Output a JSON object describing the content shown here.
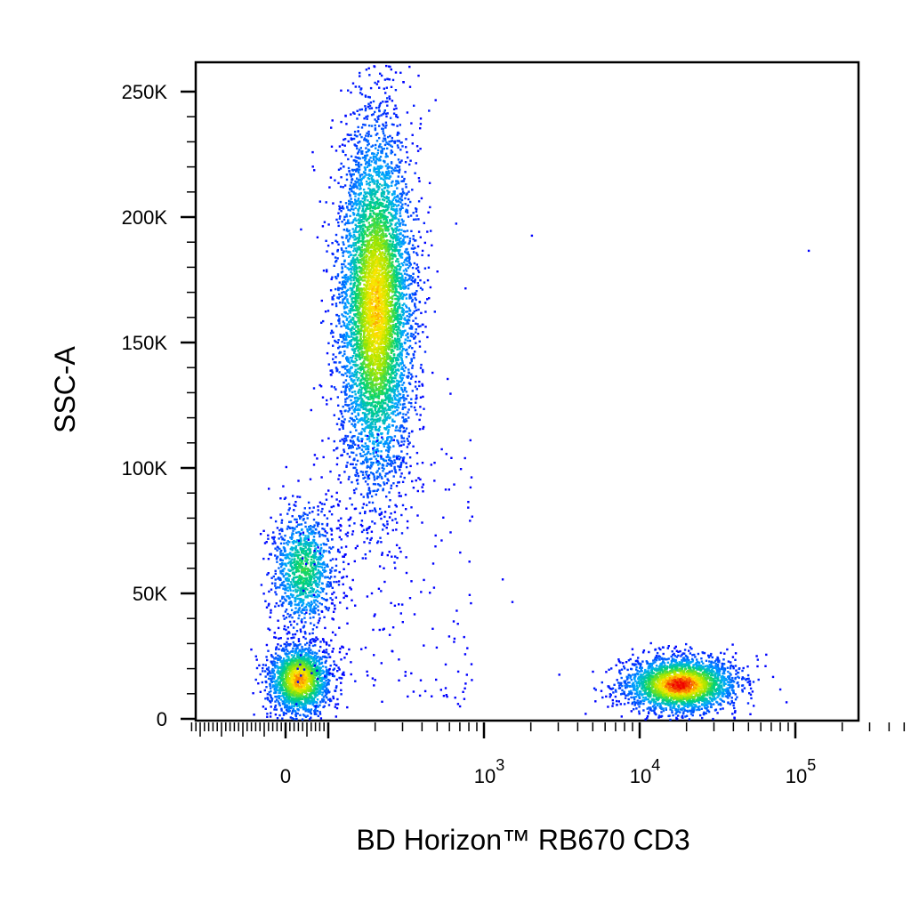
{
  "chart_data": {
    "type": "scatter",
    "title": "",
    "xlabel": "BD Horizon™ RB670 CD3",
    "ylabel": "SSC-A",
    "x_scale": "biexponential",
    "y_scale": "linear",
    "xlim": [
      -250,
      200000
    ],
    "ylim": [
      -3000,
      262144
    ],
    "grid": false,
    "legend": "none",
    "color_scale": "density (blue → cyan → green → yellow → red)",
    "x_ticks": [
      {
        "value": 0,
        "label": "0",
        "exp": ""
      },
      {
        "value": 1000,
        "label": "10",
        "exp": "3"
      },
      {
        "value": 10000,
        "label": "10",
        "exp": "4"
      },
      {
        "value": 100000,
        "label": "10",
        "exp": "5"
      }
    ],
    "y_ticks": [
      {
        "value": 0,
        "label": "0"
      },
      {
        "value": 50000,
        "label": "50K"
      },
      {
        "value": 100000,
        "label": "100K"
      },
      {
        "value": 150000,
        "label": "150K"
      },
      {
        "value": 200000,
        "label": "200K"
      },
      {
        "value": 250000,
        "label": "250K"
      }
    ],
    "populations": [
      {
        "x_center": 200,
        "x_spread_log": 0.12,
        "y_center": 165000,
        "y_spread": 36000,
        "count": 6000,
        "peak_density": 0.85
      },
      {
        "x_center": 40,
        "x_spread_log": 0.1,
        "y_center": 60000,
        "y_spread": 12000,
        "count": 1100,
        "peak_density": 0.55
      },
      {
        "x_center": 30,
        "x_spread_log": 0.1,
        "y_center": 16000,
        "y_spread": 7000,
        "count": 1800,
        "peak_density": 0.9
      },
      {
        "x_center": 18000,
        "x_spread_log": 0.18,
        "y_center": 14000,
        "y_spread": 5500,
        "count": 2600,
        "peak_density": 1.0
      }
    ],
    "outliers": [
      {
        "x": 2000,
        "y": 193000
      },
      {
        "x": 120000,
        "y": 187000
      },
      {
        "x": 750,
        "y": 172000
      },
      {
        "x": 600,
        "y": 130000
      },
      {
        "x": 700,
        "y": 100000
      },
      {
        "x": 1300,
        "y": 56000
      },
      {
        "x": 1500,
        "y": 47000
      },
      {
        "x": 3000,
        "y": 18000
      },
      {
        "x": 64000,
        "y": 26000
      }
    ]
  }
}
